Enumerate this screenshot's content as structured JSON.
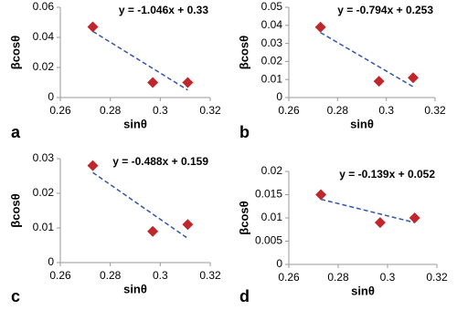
{
  "chart_data": [
    {
      "type": "scatter",
      "panel_label": "a",
      "equation": "y = -1.046x + 0.33",
      "xlabel": "sinθ",
      "ylabel": "βcosθ",
      "x": [
        0.273,
        0.297,
        0.311
      ],
      "values": [
        0.047,
        0.01,
        0.01
      ],
      "color": "#c0272d",
      "trend": {
        "x": [
          0.273,
          0.311
        ],
        "values": [
          0.044,
          0.005
        ],
        "color": "#3355aa"
      },
      "xlim": [
        0.26,
        0.32
      ],
      "xticks": [
        0.26,
        0.28,
        0.3,
        0.32
      ],
      "ylim": [
        0,
        0.06
      ],
      "yticks": [
        0,
        0.02,
        0.04,
        0.06
      ]
    },
    {
      "type": "scatter",
      "panel_label": "b",
      "equation": "y = -0.794x + 0.253",
      "xlabel": "sinθ",
      "ylabel": "βcosθ",
      "x": [
        0.273,
        0.297,
        0.311
      ],
      "values": [
        0.039,
        0.009,
        0.011
      ],
      "color": "#c0272d",
      "trend": {
        "x": [
          0.273,
          0.311
        ],
        "values": [
          0.036,
          0.006
        ],
        "color": "#3355aa"
      },
      "xlim": [
        0.26,
        0.32
      ],
      "xticks": [
        0.26,
        0.28,
        0.3,
        0.32
      ],
      "ylim": [
        0,
        0.05
      ],
      "yticks": [
        0,
        0.01,
        0.02,
        0.03,
        0.04,
        0.05
      ]
    },
    {
      "type": "scatter",
      "panel_label": "c",
      "equation": "y = -0.488x + 0.159",
      "xlabel": "sinθ",
      "ylabel": "βcosθ",
      "x": [
        0.273,
        0.297,
        0.311
      ],
      "values": [
        0.028,
        0.009,
        0.011
      ],
      "color": "#c0272d",
      "trend": {
        "x": [
          0.273,
          0.311
        ],
        "values": [
          0.026,
          0.007
        ],
        "color": "#3355aa"
      },
      "xlim": [
        0.26,
        0.32
      ],
      "xticks": [
        0.26,
        0.28,
        0.3,
        0.32
      ],
      "ylim": [
        0,
        0.03
      ],
      "yticks": [
        0,
        0.01,
        0.02,
        0.03
      ]
    },
    {
      "type": "scatter",
      "panel_label": "d",
      "equation": "y = -0.139x + 0.052",
      "xlabel": "sinθ",
      "ylabel": "βcosθ",
      "x": [
        0.273,
        0.297,
        0.311
      ],
      "values": [
        0.015,
        0.009,
        0.01
      ],
      "color": "#c0272d",
      "trend": {
        "x": [
          0.273,
          0.311
        ],
        "values": [
          0.014,
          0.009
        ],
        "color": "#3355aa"
      },
      "xlim": [
        0.26,
        0.32
      ],
      "xticks": [
        0.26,
        0.28,
        0.3,
        0.32
      ],
      "ylim": [
        0,
        0.02
      ],
      "yticks": [
        0,
        0.005,
        0.01,
        0.015,
        0.02
      ]
    }
  ]
}
